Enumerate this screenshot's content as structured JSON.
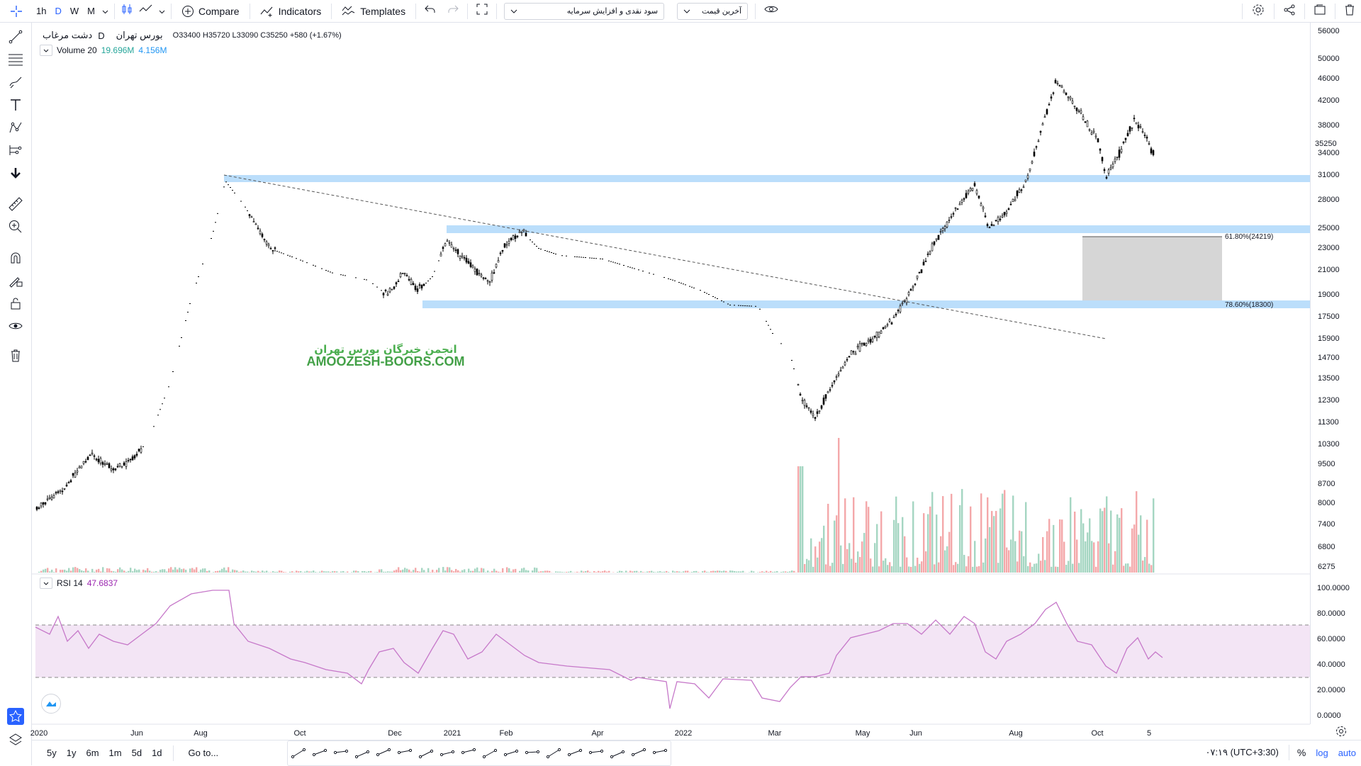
{
  "toolbar": {
    "timeframes": [
      "1h",
      "D",
      "W",
      "M"
    ],
    "active_timeframe": "D",
    "compare_label": "Compare",
    "indicators_label": "Indicators",
    "templates_label": "Templates",
    "indicator_select_value": "سود نقدی و افزایش سرمایه",
    "price_select_value": "آخرین قیمت"
  },
  "symbol": {
    "name": "دشت مرغاب",
    "interval": "D",
    "exchange": "بورس تهران",
    "open_label": "O",
    "open": "33400",
    "high_label": "H",
    "high": "35720",
    "low_label": "L",
    "low": "33090",
    "close_label": "C",
    "close": "35250",
    "change": "+580 (+1.67%)"
  },
  "volume_legend": {
    "name": "Volume 20",
    "value1": "19.696M",
    "value2": "4.156M"
  },
  "rsi_legend": {
    "name": "RSI 14",
    "value": "47.6837"
  },
  "watermark": {
    "line1": "انجمن خبرگان بورس تهران",
    "line2": "AMOOZESH-BOORS.COM"
  },
  "fib_labels": {
    "level1": "61.80%(24219)",
    "level2": "78.60%(18300)"
  },
  "price_axis": {
    "ticks": [
      "56000",
      "50000",
      "46000",
      "42000",
      "38000",
      "35250",
      "34000",
      "31000",
      "28000",
      "25000",
      "23000",
      "21000",
      "19000",
      "17500",
      "15900",
      "14700",
      "13500",
      "12300",
      "11300",
      "10300",
      "9500",
      "8700",
      "8000",
      "7400",
      "6800",
      "6275"
    ],
    "last_price": "35250"
  },
  "rsi_axis": {
    "ticks": [
      "100.0000",
      "80.0000",
      "60.0000",
      "40.0000",
      "20.0000",
      "0.0000"
    ]
  },
  "time_axis": {
    "labels": [
      "2020",
      "Jun",
      "Aug",
      "Oct",
      "Dec",
      "2021",
      "Feb",
      "Apr",
      "2022",
      "Mar",
      "May",
      "Jun",
      "Aug",
      "Oct",
      "5"
    ]
  },
  "bottombar": {
    "ranges": [
      "5y",
      "1y",
      "6m",
      "1m",
      "5d",
      "1d"
    ],
    "goto_label": "Go to...",
    "time": "۰۷:۱۹ (UTC+3:30)",
    "percent_label": "%",
    "log_label": "log",
    "auto_label": "auto"
  },
  "colors": {
    "zone": "#bbdefb",
    "vol_up": "#a5d6c2",
    "vol_down": "#f4a8aa",
    "rsi_line": "#c678c9",
    "rsi_band": "#f3e5f5",
    "watermark_green": "#4caf50",
    "accent": "#2962ff"
  },
  "icons": {
    "left_toolbar": [
      "crosshair-icon",
      "trendline-icon",
      "horizontal-lines-icon",
      "brush-icon",
      "text-icon",
      "pattern-icon",
      "prediction-icon",
      "arrow-down-icon",
      "ruler-icon",
      "zoom-icon",
      "magnet-icon",
      "lock-drawing-icon",
      "lock-icon",
      "eye-icon",
      "trash-icon",
      "star-icon",
      "layers-icon"
    ],
    "top_right": [
      "settings-icon",
      "share-icon",
      "snapshot-icon",
      "trash-icon"
    ]
  }
}
